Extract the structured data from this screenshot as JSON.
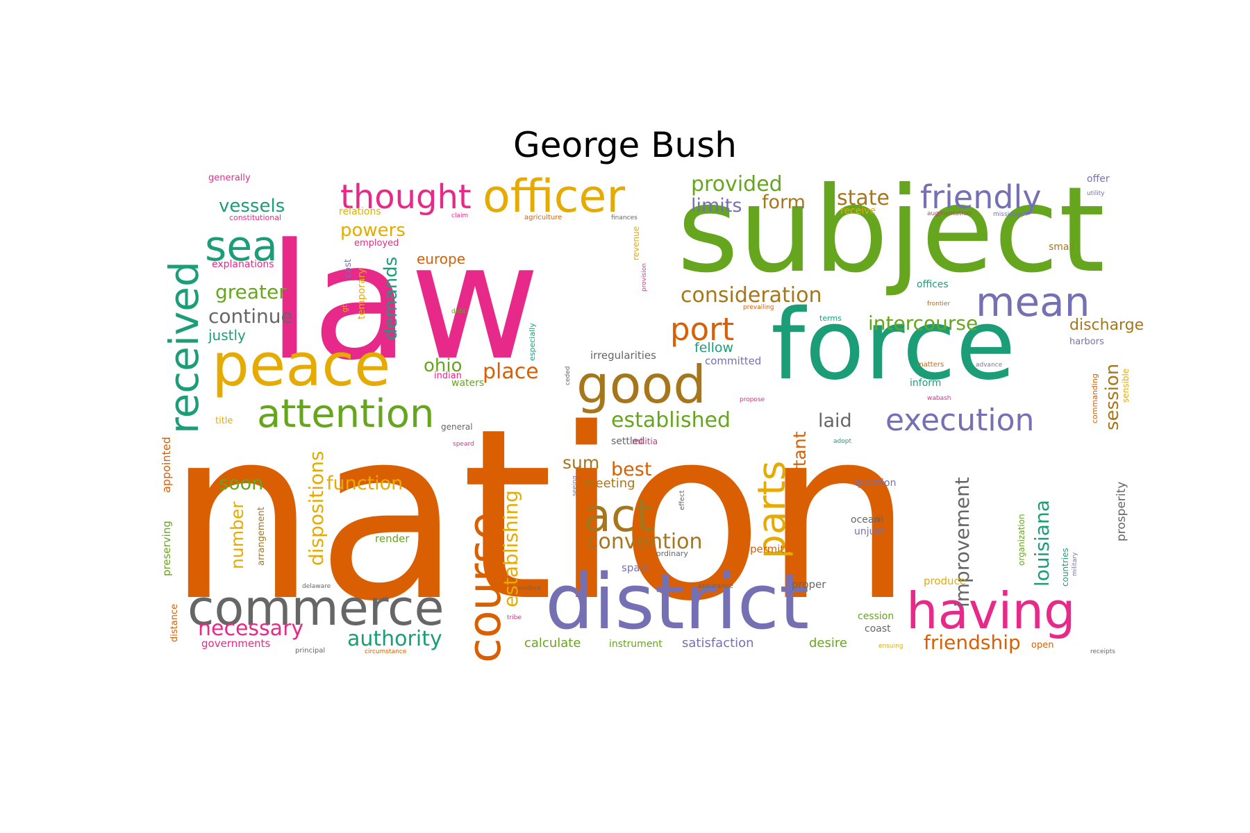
{
  "title": "George Bush",
  "palette": {
    "teal": "#1b9e77",
    "orange": "#d95f02",
    "purple": "#7570b3",
    "pink": "#e7298a",
    "green": "#66a61e",
    "gold": "#e6ab02",
    "brown": "#a6761d",
    "gray": "#666666"
  },
  "words": [
    {
      "text": "nation",
      "color": "orange"
    },
    {
      "text": "law",
      "color": "pink"
    },
    {
      "text": "subject",
      "color": "green"
    },
    {
      "text": "force",
      "color": "teal"
    },
    {
      "text": "district",
      "color": "purple"
    },
    {
      "text": "peace",
      "color": "gold"
    },
    {
      "text": "good",
      "color": "brown"
    },
    {
      "text": "having",
      "color": "pink"
    },
    {
      "text": "officer",
      "color": "gold"
    },
    {
      "text": "commerce",
      "color": "gray"
    },
    {
      "text": "course",
      "color": "orange"
    },
    {
      "text": "received",
      "color": "teal"
    },
    {
      "text": "act",
      "color": "brown"
    },
    {
      "text": "attention",
      "color": "green"
    },
    {
      "text": "mean",
      "color": "purple"
    },
    {
      "text": "parts",
      "color": "gold"
    },
    {
      "text": "sea",
      "color": "teal"
    },
    {
      "text": "thought",
      "color": "pink"
    },
    {
      "text": "friendly",
      "color": "purple"
    },
    {
      "text": "execution",
      "color": "purple"
    },
    {
      "text": "port",
      "color": "orange"
    },
    {
      "text": "established",
      "color": "green"
    },
    {
      "text": "consideration",
      "color": "brown"
    },
    {
      "text": "convention",
      "color": "brown"
    },
    {
      "text": "intercourse",
      "color": "green"
    },
    {
      "text": "authority",
      "color": "teal"
    },
    {
      "text": "necessary",
      "color": "pink"
    },
    {
      "text": "friendship",
      "color": "orange"
    },
    {
      "text": "improvement",
      "color": "gray"
    },
    {
      "text": "louisiana",
      "color": "teal"
    },
    {
      "text": "establishing",
      "color": "gold"
    },
    {
      "text": "dispositions",
      "color": "gold"
    },
    {
      "text": "provided",
      "color": "green"
    },
    {
      "text": "place",
      "color": "orange"
    },
    {
      "text": "state",
      "color": "brown"
    },
    {
      "text": "important",
      "color": "orange"
    },
    {
      "text": "session",
      "color": "brown"
    },
    {
      "text": "continue",
      "color": "gray"
    },
    {
      "text": "greater",
      "color": "green"
    },
    {
      "text": "vessels",
      "color": "teal"
    },
    {
      "text": "limits",
      "color": "purple"
    },
    {
      "text": "form",
      "color": "brown"
    },
    {
      "text": "function",
      "color": "gold"
    },
    {
      "text": "demands",
      "color": "teal"
    },
    {
      "text": "laid",
      "color": "gray"
    },
    {
      "text": "ohio",
      "color": "green"
    },
    {
      "text": "powers",
      "color": "gold"
    },
    {
      "text": "soon",
      "color": "green"
    },
    {
      "text": "best",
      "color": "orange"
    },
    {
      "text": "sum",
      "color": "brown"
    },
    {
      "text": "number",
      "color": "gold"
    },
    {
      "text": "discharge",
      "color": "brown"
    },
    {
      "text": "fellow",
      "color": "teal"
    },
    {
      "text": "europe",
      "color": "orange"
    },
    {
      "text": "justly",
      "color": "teal"
    },
    {
      "text": "meeting",
      "color": "brown"
    },
    {
      "text": "calculate",
      "color": "green"
    },
    {
      "text": "satisfaction",
      "color": "purple"
    },
    {
      "text": "desire",
      "color": "green"
    },
    {
      "text": "prosperity",
      "color": "gray"
    },
    {
      "text": "appointed",
      "color": "orange"
    },
    {
      "text": "preserving",
      "color": "green"
    },
    {
      "text": "distance",
      "color": "orange"
    },
    {
      "text": "arrangement",
      "color": "brown"
    },
    {
      "text": "especially",
      "color": "teal"
    },
    {
      "text": "temporary",
      "color": "gold"
    },
    {
      "text": "cost",
      "color": "purple"
    },
    {
      "text": "explanations",
      "color": "pink"
    },
    {
      "text": "employed",
      "color": "pink"
    },
    {
      "text": "relations",
      "color": "gold"
    },
    {
      "text": "constitutional",
      "color": "pink"
    },
    {
      "text": "generally",
      "color": "pink"
    },
    {
      "text": "claim",
      "color": "pink"
    },
    {
      "text": "agriculture",
      "color": "orange"
    },
    {
      "text": "finances",
      "color": "gray"
    },
    {
      "text": "receive",
      "color": "gold"
    },
    {
      "text": "augmentation",
      "color": "pink"
    },
    {
      "text": "mississippi",
      "color": "purple"
    },
    {
      "text": "offer",
      "color": "purple"
    },
    {
      "text": "utility",
      "color": "purple"
    },
    {
      "text": "small",
      "color": "brown"
    },
    {
      "text": "provision",
      "color": "pink"
    },
    {
      "text": "offices",
      "color": "teal"
    },
    {
      "text": "frontier",
      "color": "orange"
    },
    {
      "text": "prevailing",
      "color": "orange"
    },
    {
      "text": "terms",
      "color": "teal"
    },
    {
      "text": "harbors",
      "color": "purple"
    },
    {
      "text": "irregularities",
      "color": "gray"
    },
    {
      "text": "committed",
      "color": "purple"
    },
    {
      "text": "matters",
      "color": "orange"
    },
    {
      "text": "advance",
      "color": "purple"
    },
    {
      "text": "inform",
      "color": "teal"
    },
    {
      "text": "wabash",
      "color": "pink"
    },
    {
      "text": "commanding",
      "color": "orange"
    },
    {
      "text": "sensible",
      "color": "gold"
    },
    {
      "text": "propose",
      "color": "pink"
    },
    {
      "text": "indian",
      "color": "pink"
    },
    {
      "text": "waters",
      "color": "green"
    },
    {
      "text": "ceded",
      "color": "gray"
    },
    {
      "text": "title",
      "color": "gold"
    },
    {
      "text": "general",
      "color": "gray"
    },
    {
      "text": "speard",
      "color": "pink"
    },
    {
      "text": "settled",
      "color": "gray"
    },
    {
      "text": "adopt",
      "color": "teal"
    },
    {
      "text": "militia",
      "color": "pink"
    },
    {
      "text": "question",
      "color": "purple"
    },
    {
      "text": "ocean",
      "color": "gray"
    },
    {
      "text": "unjust",
      "color": "purple"
    },
    {
      "text": "iii",
      "color": "gray"
    },
    {
      "text": "effect",
      "color": "gray"
    },
    {
      "text": "render",
      "color": "green"
    },
    {
      "text": "ordinary",
      "color": "gray"
    },
    {
      "text": "permitted",
      "color": "orange"
    },
    {
      "text": "spain",
      "color": "purple"
    },
    {
      "text": "assurance",
      "color": "gray"
    },
    {
      "text": "proper",
      "color": "gray"
    },
    {
      "text": "produce",
      "color": "gold"
    },
    {
      "text": "organization",
      "color": "green"
    },
    {
      "text": "countries",
      "color": "teal"
    },
    {
      "text": "military",
      "color": "purple"
    },
    {
      "text": "delaware",
      "color": "gray"
    },
    {
      "text": "evident",
      "color": "gray"
    },
    {
      "text": "tribe",
      "color": "pink"
    },
    {
      "text": "cession",
      "color": "green"
    },
    {
      "text": "coast",
      "color": "gray"
    },
    {
      "text": "open",
      "color": "orange"
    },
    {
      "text": "ensuing",
      "color": "gold"
    },
    {
      "text": "instrument",
      "color": "green"
    },
    {
      "text": "governments",
      "color": "pink"
    },
    {
      "text": "principal",
      "color": "gray"
    },
    {
      "text": "circumstance",
      "color": "orange"
    },
    {
      "text": "receipts",
      "color": "gray"
    },
    {
      "text": "debt",
      "color": "green"
    },
    {
      "text": "gt",
      "color": "gold"
    },
    {
      "text": "seeing",
      "color": "purple"
    },
    {
      "text": "revenue",
      "color": "gold"
    }
  ]
}
